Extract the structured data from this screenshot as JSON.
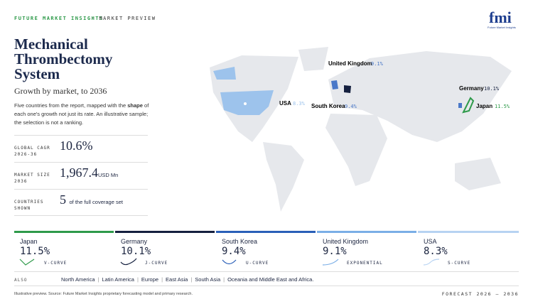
{
  "header": {
    "brand": "FUTURE MARKET INSIGHTS",
    "section": "MARKET PREVIEW",
    "logo": "fmi",
    "logo_sub": "Future Market Insights"
  },
  "title": [
    "Mechanical",
    "Thrombectomy",
    "System"
  ],
  "subtitle": "Growth by market, to 2036",
  "description": {
    "before": "Five countries from the report, mapped with the",
    "bold": "shape",
    "after": "of each one's growth not just its rate. An illustrative sample; the selection is not a ranking."
  },
  "stats": [
    {
      "label": [
        "GLOBAL CAGR",
        "2026-36"
      ],
      "value": "10.6%",
      "unit": ""
    },
    {
      "label": [
        "MARKET SIZE",
        "2036"
      ],
      "value": "1,967.4",
      "unit": "USD Mn"
    },
    {
      "label": [
        "COUNTRIES",
        "SHOWN"
      ],
      "value": "5",
      "unit": "of the full coverage set"
    }
  ],
  "map_labels": [
    {
      "name": "United Kingdom",
      "value": "9.1%"
    },
    {
      "name": "Germany",
      "value": "10.1%"
    },
    {
      "name": "USA",
      "value": "8.3%"
    },
    {
      "name": "South Korea",
      "value": "9.4%"
    },
    {
      "name": "Japan",
      "value": "11.5%"
    }
  ],
  "cards": [
    {
      "country": "Japan",
      "value": "11.5%",
      "curve": "V-CURVE"
    },
    {
      "country": "Germany",
      "value": "10.1%",
      "curve": "J-CURVE"
    },
    {
      "country": "South Korea",
      "value": "9.4%",
      "curve": "U-CURVE"
    },
    {
      "country": "United Kingdom",
      "value": "9.1%",
      "curve": "EXPONENTIAL"
    },
    {
      "country": "USA",
      "value": "8.3%",
      "curve": "S-CURVE"
    }
  ],
  "also": {
    "label": "ALSO",
    "regions": [
      "North America",
      "Latin America",
      "Europe",
      "East Asia",
      "South Asia",
      "Oceania and Middle East and Africa."
    ]
  },
  "footer": {
    "note": "Illustrative preview. Source: Future Market Insights proprietary forecasting model and primary research.",
    "forecast": "FORECAST 2026 – 2036"
  }
}
